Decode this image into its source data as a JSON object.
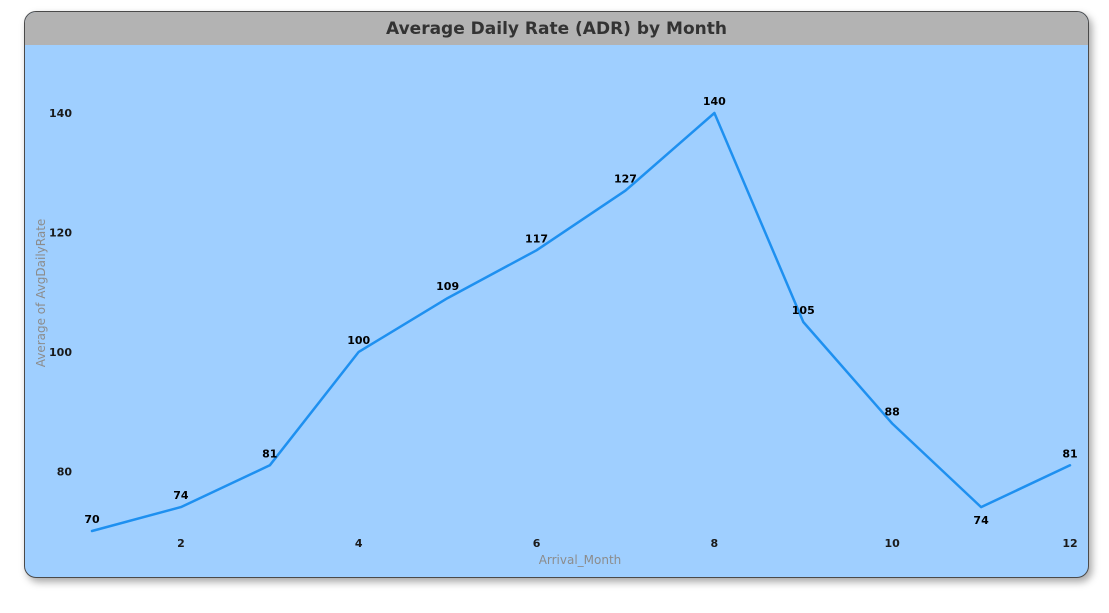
{
  "chart_data": {
    "type": "line",
    "title": "Average Daily Rate (ADR) by Month",
    "xlabel": "Arrival_Month",
    "ylabel": "Average of AvgDailyRate",
    "x": [
      1,
      2,
      3,
      4,
      5,
      6,
      7,
      8,
      9,
      10,
      11,
      12
    ],
    "values": [
      70,
      74,
      81,
      100,
      109,
      117,
      127,
      140,
      105,
      88,
      74,
      81
    ],
    "data_labels": [
      "70",
      "74",
      "81",
      "100",
      "109",
      "117",
      "127",
      "140",
      "105",
      "88",
      "74",
      "81"
    ],
    "x_ticks": [
      "2",
      "4",
      "6",
      "8",
      "10",
      "12"
    ],
    "y_ticks": [
      "80",
      "100",
      "120",
      "140"
    ],
    "xlim": [
      1,
      12
    ],
    "ylim": [
      70,
      140
    ],
    "grid": false,
    "legend": "none",
    "line_color": "#1e90f0",
    "background_color": "#9fcfff",
    "title_bar_color": "#b3b3b3"
  }
}
